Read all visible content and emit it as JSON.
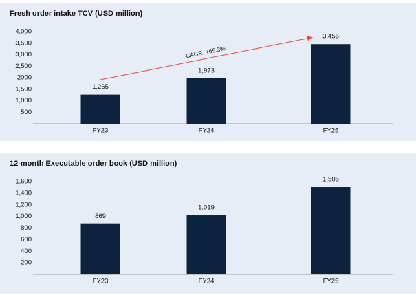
{
  "chart_data": [
    {
      "type": "bar",
      "title": "Fresh order intake TCV (USD million)",
      "categories": [
        "FY23",
        "FY24",
        "FY25"
      ],
      "values": [
        1265,
        1973,
        3456
      ],
      "value_labels": [
        "1,265",
        "1,973",
        "3,456"
      ],
      "color": "#0c2340",
      "ylim": [
        0,
        4000
      ],
      "yticks": [
        500,
        {
          "value": 1000,
          "label": "1,000"
        },
        {
          "value": 1500,
          "label": "1,500"
        },
        2000,
        {
          "value": 2500,
          "label": "2,500"
        },
        {
          "value": 3000,
          "label": "3,000"
        },
        {
          "value": 3500,
          "label": "3,500"
        },
        {
          "value": 4000,
          "label": "4,000"
        }
      ],
      "annotation": "CAGR: +65.3%",
      "annotation_color": "#e8473b"
    },
    {
      "type": "bar",
      "title": "12-month Executable order book (USD million)",
      "categories": [
        "FY23",
        "FY24",
        "FY25"
      ],
      "values": [
        869,
        1019,
        1505
      ],
      "value_labels": [
        "869",
        "1,019",
        "1,505"
      ],
      "color": "#0c2340",
      "ylim": [
        0,
        1600
      ],
      "yticks": [
        200,
        400,
        600,
        800,
        {
          "value": 1000,
          "label": "1,000"
        },
        {
          "value": 1200,
          "label": "1,200"
        },
        {
          "value": 1400,
          "label": "1,400"
        },
        {
          "value": 1600,
          "label": "1,600"
        }
      ]
    }
  ]
}
